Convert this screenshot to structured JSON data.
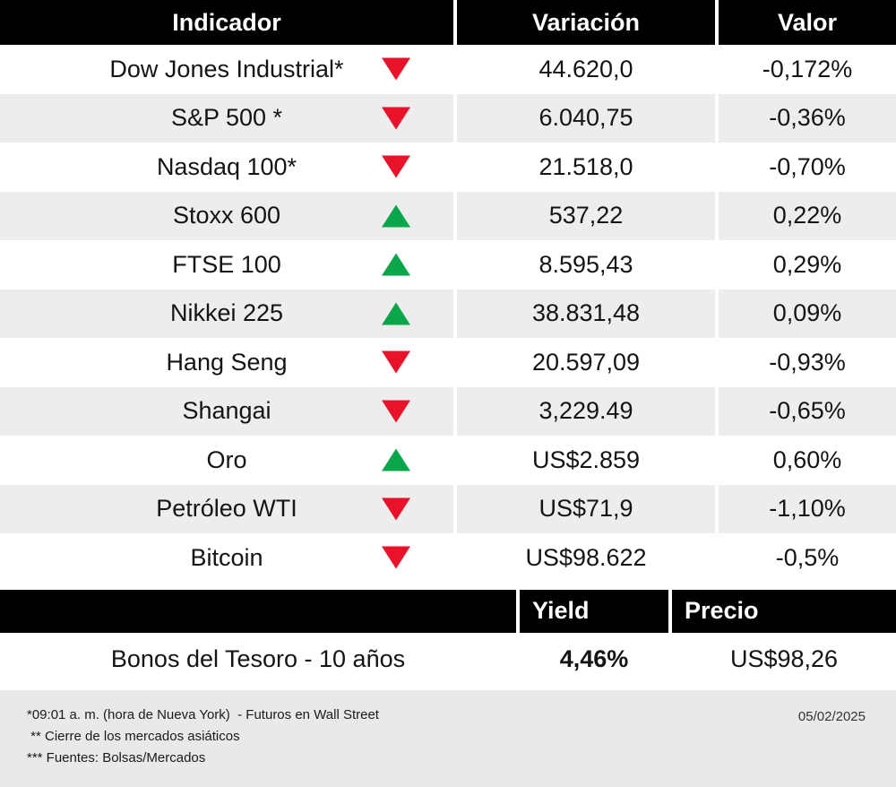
{
  "colors": {
    "header_bg": "#000000",
    "header_text": "#ffffff",
    "row_alt_bg": "#ededed",
    "up_green": "#0ba64a",
    "down_red": "#e8132b",
    "footer_bg": "#e9e9e9"
  },
  "chart_data": [
    {
      "type": "table",
      "columns": [
        "Indicador",
        "Variación",
        "Valor"
      ],
      "rows": [
        {
          "indicator": "Dow Jones Industrial*",
          "direction": "down",
          "variation": "44.620,0",
          "value": "-0,172%"
        },
        {
          "indicator": "S&P 500 *",
          "direction": "down",
          "variation": "6.040,75",
          "value": "-0,36%"
        },
        {
          "indicator": "Nasdaq 100*",
          "direction": "down",
          "variation": "21.518,0",
          "value": "-0,70%"
        },
        {
          "indicator": "Stoxx 600",
          "direction": "up",
          "variation": "537,22",
          "value": "0,22%"
        },
        {
          "indicator": "FTSE 100",
          "direction": "up",
          "variation": "8.595,43",
          "value": "0,29%"
        },
        {
          "indicator": "Nikkei 225",
          "direction": "up",
          "variation": "38.831,48",
          "value": "0,09%"
        },
        {
          "indicator": "Hang Seng",
          "direction": "down",
          "variation": "20.597,09",
          "value": "-0,93%"
        },
        {
          "indicator": "Shangai",
          "direction": "down",
          "variation": "3,229.49",
          "value": "-0,65%"
        },
        {
          "indicator": "Oro",
          "direction": "up",
          "variation": "US$2.859",
          "value": "0,60%"
        },
        {
          "indicator": "Petróleo WTI",
          "direction": "down",
          "variation": "US$71,9",
          "value": "-1,10%"
        },
        {
          "indicator": "Bitcoin",
          "direction": "down",
          "variation": "US$98.622",
          "value": "-0,5%"
        }
      ]
    },
    {
      "type": "table",
      "columns": [
        "",
        "Yield",
        "Precio"
      ],
      "rows": [
        {
          "label": "Bonos del Tesoro - 10 años",
          "yield": "4,46%",
          "price": "US$98,26"
        }
      ]
    }
  ],
  "footer": {
    "notes": [
      "*09:01 a. m. (hora de Nueva York)  - Futuros en Wall Street",
      " ** Cierre de los mercados asiáticos",
      "*** Fuentes: Bolsas/Mercados"
    ],
    "date": "05/02/2025"
  }
}
